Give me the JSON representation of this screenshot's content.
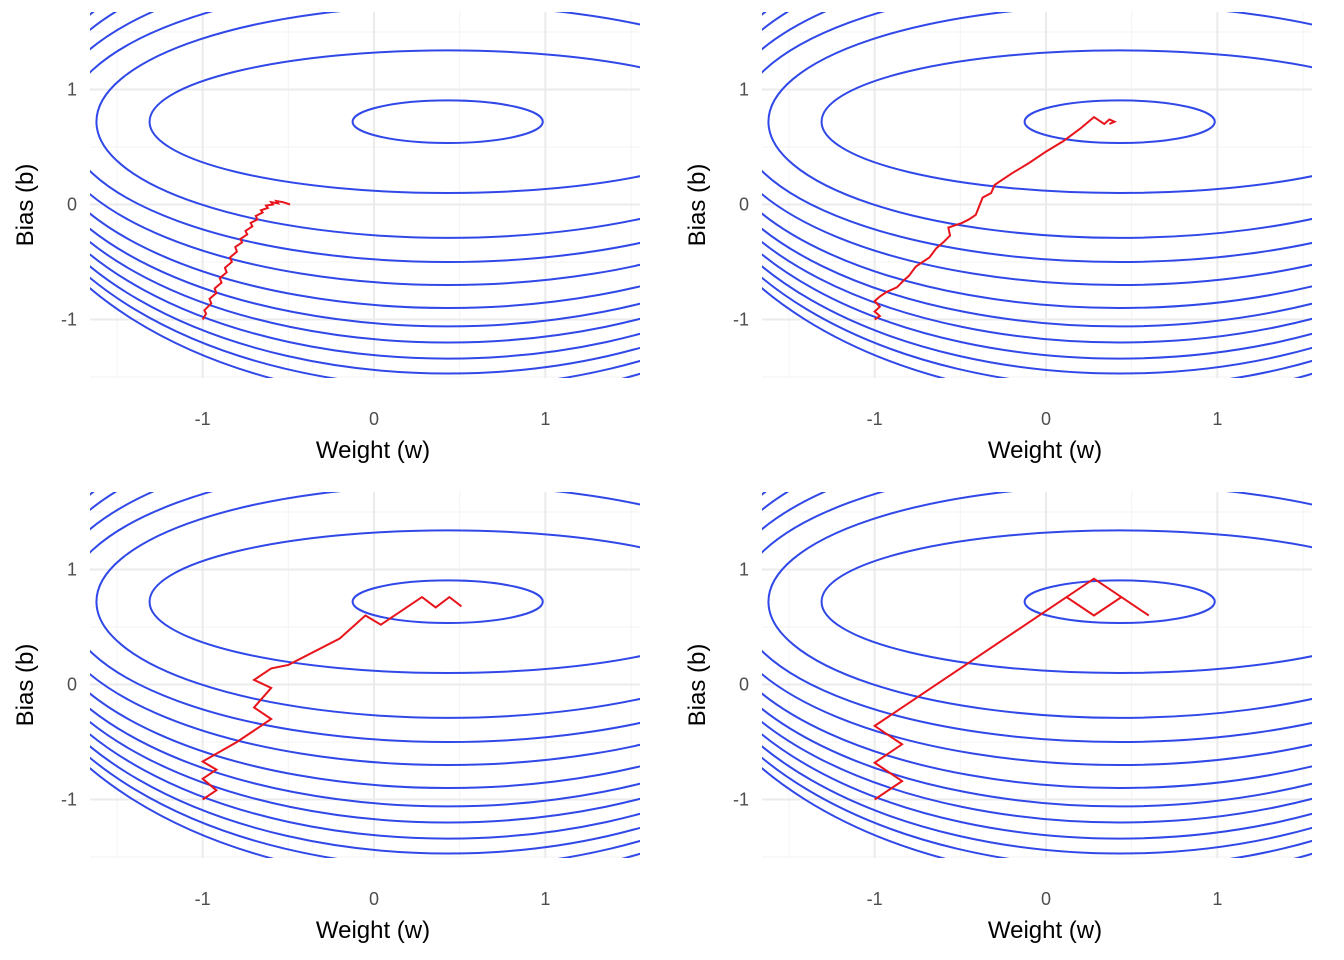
{
  "colors": {
    "contour": "#3048e8",
    "path": "#e8141b",
    "grid": "#ebebeb",
    "tick_text": "#4d4d4d"
  },
  "chart_data": [
    {
      "type": "contour",
      "xlabel": "Weight (w)",
      "ylabel": "Bias (b)",
      "xlim": [
        -1.5,
        1.5
      ],
      "ylim": [
        -1.5,
        1.5
      ],
      "xticks": [
        -1,
        0,
        1
      ],
      "yticks": [
        -1,
        0,
        1
      ],
      "xtick_labels": [
        "-1",
        "0",
        "1"
      ],
      "ytick_labels": [
        "-1",
        "0",
        "1"
      ],
      "grid": true,
      "contour_center": [
        0.43,
        0.72
      ],
      "series": [
        {
          "x": [
            -1.0,
            -0.98,
            -0.99,
            -0.95,
            -0.96,
            -0.92,
            -0.93,
            -0.89,
            -0.9,
            -0.86,
            -0.87,
            -0.83,
            -0.84,
            -0.8,
            -0.81,
            -0.77,
            -0.78,
            -0.74,
            -0.75,
            -0.71,
            -0.72,
            -0.68,
            -0.69,
            -0.65,
            -0.66,
            -0.62,
            -0.63,
            -0.59,
            -0.6,
            -0.56,
            -0.57,
            -0.53,
            -0.49
          ],
          "y": [
            -1.0,
            -0.95,
            -0.92,
            -0.86,
            -0.82,
            -0.77,
            -0.73,
            -0.68,
            -0.64,
            -0.59,
            -0.55,
            -0.5,
            -0.46,
            -0.41,
            -0.37,
            -0.33,
            -0.3,
            -0.26,
            -0.23,
            -0.19,
            -0.16,
            -0.13,
            -0.1,
            -0.07,
            -0.05,
            -0.03,
            -0.01,
            0.0,
            0.02,
            0.01,
            0.03,
            0.02,
            0.0
          ]
        }
      ]
    },
    {
      "type": "contour",
      "xlabel": "Weight (w)",
      "ylabel": "Bias (b)",
      "xlim": [
        -1.5,
        1.5
      ],
      "ylim": [
        -1.5,
        1.5
      ],
      "xticks": [
        -1,
        0,
        1
      ],
      "yticks": [
        -1,
        0,
        1
      ],
      "xtick_labels": [
        "-1",
        "0",
        "1"
      ],
      "ytick_labels": [
        "-1",
        "0",
        "1"
      ],
      "grid": true,
      "contour_center": [
        0.43,
        0.72
      ],
      "series": [
        {
          "x": [
            -1.0,
            -0.97,
            -1.0,
            -0.97,
            -1.0,
            -0.97,
            -0.93,
            -0.87,
            -0.83,
            -0.8,
            -0.76,
            -0.72,
            -0.68,
            -0.64,
            -0.6,
            -0.56,
            -0.57,
            -0.49,
            -0.45,
            -0.41,
            -0.37,
            -0.32,
            -0.3,
            -0.2,
            -0.1,
            0.0,
            0.1,
            0.2,
            0.28,
            0.34,
            0.37,
            0.4,
            0.37
          ],
          "y": [
            -1.0,
            -0.97,
            -0.93,
            -0.89,
            -0.84,
            -0.8,
            -0.76,
            -0.72,
            -0.66,
            -0.62,
            -0.54,
            -0.5,
            -0.46,
            -0.38,
            -0.33,
            -0.27,
            -0.2,
            -0.16,
            -0.13,
            -0.09,
            0.06,
            0.1,
            0.17,
            0.27,
            0.36,
            0.46,
            0.55,
            0.66,
            0.76,
            0.7,
            0.74,
            0.72,
            0.7
          ]
        }
      ]
    },
    {
      "type": "contour",
      "xlabel": "Weight (w)",
      "ylabel": "Bias (b)",
      "xlim": [
        -1.5,
        1.5
      ],
      "ylim": [
        -1.5,
        1.5
      ],
      "xticks": [
        -1,
        0,
        1
      ],
      "yticks": [
        -1,
        0,
        1
      ],
      "xtick_labels": [
        "-1",
        "0",
        "1"
      ],
      "ytick_labels": [
        "-1",
        "0",
        "1"
      ],
      "grid": true,
      "contour_center": [
        0.43,
        0.72
      ],
      "series": [
        {
          "x": [
            -1.0,
            -0.92,
            -1.0,
            -0.92,
            -1.0,
            -0.8,
            -0.6,
            -0.7,
            -0.6,
            -0.7,
            -0.6,
            -0.5,
            -0.2,
            -0.05,
            0.04,
            0.28,
            0.36,
            0.44,
            0.51
          ],
          "y": [
            -1.0,
            -0.92,
            -0.82,
            -0.74,
            -0.67,
            -0.5,
            -0.3,
            -0.2,
            -0.03,
            0.04,
            0.14,
            0.17,
            0.4,
            0.6,
            0.52,
            0.76,
            0.67,
            0.76,
            0.68
          ]
        }
      ]
    },
    {
      "type": "contour",
      "xlabel": "Weight (w)",
      "ylabel": "Bias (b)",
      "xlim": [
        -1.5,
        1.5
      ],
      "ylim": [
        -1.5,
        1.5
      ],
      "xticks": [
        -1,
        0,
        1
      ],
      "yticks": [
        -1,
        0,
        1
      ],
      "xtick_labels": [
        "-1",
        "0",
        "1"
      ],
      "ytick_labels": [
        "-1",
        "0",
        "1"
      ],
      "grid": true,
      "contour_center": [
        0.43,
        0.72
      ],
      "series": [
        {
          "x": [
            -1.0,
            -0.84,
            -1.0,
            -0.84,
            -1.0,
            0.12,
            0.28,
            0.44,
            0.28,
            0.12,
            0.28,
            0.44,
            0.6
          ],
          "y": [
            -1.0,
            -0.84,
            -0.68,
            -0.52,
            -0.36,
            0.76,
            0.6,
            0.76,
            0.92,
            0.76,
            0.6,
            0.76,
            0.6
          ]
        }
      ]
    }
  ]
}
